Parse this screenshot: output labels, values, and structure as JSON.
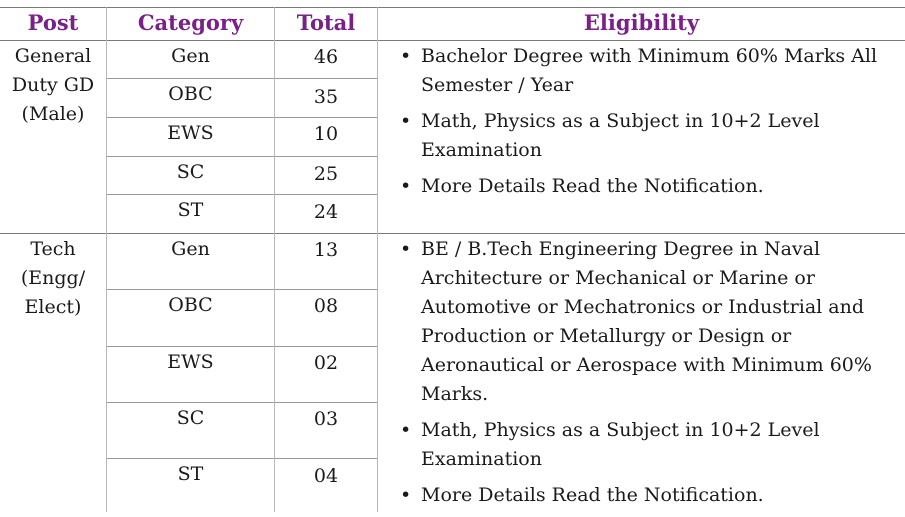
{
  "headers": {
    "post": "Post",
    "category": "Category",
    "total": "Total",
    "eligibility": "Eligibility"
  },
  "sections": [
    {
      "post": [
        "General",
        "Duty GD",
        "(Male)"
      ],
      "rows": [
        {
          "category": "Gen",
          "total": "46"
        },
        {
          "category": "OBC",
          "total": "35"
        },
        {
          "category": "EWS",
          "total": "10"
        },
        {
          "category": "SC",
          "total": "25"
        },
        {
          "category": "ST",
          "total": "24"
        }
      ],
      "eligibility": [
        "Bachelor Degree with Minimum 60% Marks All Semester / Year",
        "Math, Physics as a Subject in 10+2 Level Examination",
        "More Details Read the Notification."
      ]
    },
    {
      "post": [
        "Tech",
        "(Engg/",
        "Elect)"
      ],
      "rows": [
        {
          "category": "Gen",
          "total": "13"
        },
        {
          "category": "OBC",
          "total": "08"
        },
        {
          "category": "EWS",
          "total": "02"
        },
        {
          "category": "SC",
          "total": "03"
        },
        {
          "category": "ST",
          "total": "04"
        }
      ],
      "eligibility": [
        "BE / B.Tech Engineering Degree in Naval Architecture or Mechanical or Marine or Automotive or Mechatronics or Industrial and Production or Metallurgy or Design or Aeronautical or Aerospace with Minimum 60% Marks.",
        "Math, Physics as a Subject in 10+2 Level Examination",
        "More Details Read the Notification."
      ]
    }
  ]
}
